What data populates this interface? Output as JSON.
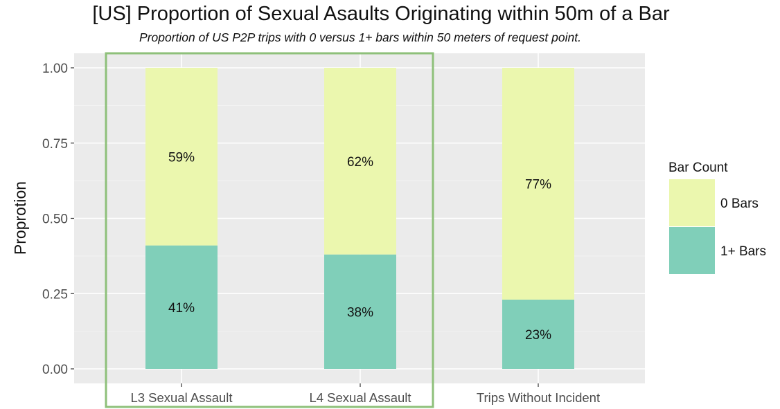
{
  "chart_data": {
    "type": "bar",
    "stacked": true,
    "title": "[US] Proportion of Sexual Asaults Originating within 50m of a Bar",
    "subtitle": "Proportion of US P2P trips with 0 versus 1+ bars within 50 meters of request point.",
    "xlabel": "",
    "ylabel": "Proprotion",
    "ylim": [
      0,
      1
    ],
    "yticks": [
      "0.00",
      "0.25",
      "0.50",
      "0.75",
      "1.00"
    ],
    "categories": [
      "L3 Sexual Assault",
      "L4 Sexual Assault",
      "Trips Without Incident"
    ],
    "series": [
      {
        "name": "1+ Bars",
        "values": [
          0.41,
          0.38,
          0.23
        ],
        "labels": [
          "41%",
          "38%",
          "23%"
        ],
        "color": "#80cfb9"
      },
      {
        "name": "0 Bars",
        "values": [
          0.59,
          0.62,
          0.77
        ],
        "labels": [
          "59%",
          "62%",
          "77%"
        ],
        "color": "#ebf7ae"
      }
    ],
    "legend": {
      "title": "Bar Count",
      "position": "right",
      "order": [
        "0 Bars",
        "1+ Bars"
      ]
    },
    "grid": true,
    "panel_background": "#ebebeb",
    "highlight_box": {
      "categories": [
        "L3 Sexual Assault",
        "L4 Sexual Assault"
      ],
      "color": "#8ec07a"
    }
  }
}
